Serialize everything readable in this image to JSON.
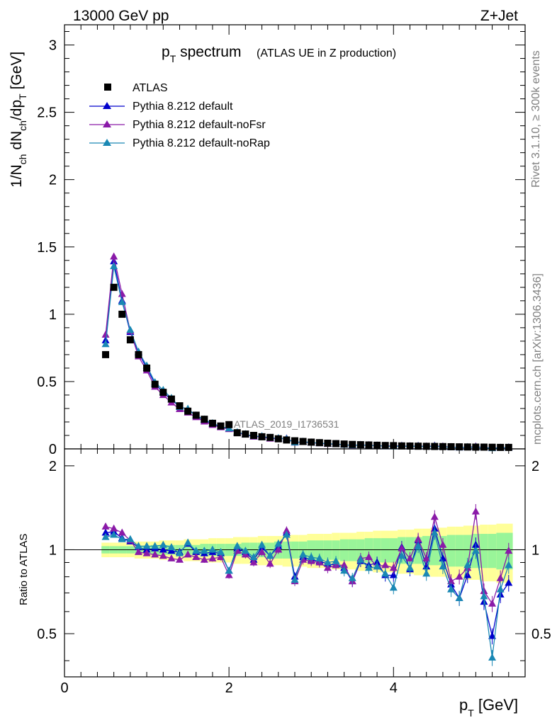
{
  "header": {
    "energy": "13000 GeV pp",
    "process": "Z+Jet"
  },
  "side_text": {
    "rivet": "Rivet 3.1.10, ≥ 300k events",
    "source": "mcplots.cern.ch [arXiv:1306.3436]"
  },
  "chart_data": {
    "type": "scatter",
    "title_main": "p",
    "title_sub": "T",
    "title_main2": " spectrum",
    "title_extra": "(ATLAS UE in Z production)",
    "analysis_label": "ATLAS_2019_I1736531",
    "ylabel_main": "1/N",
    "ylabel_parts": [
      "1/N",
      "ch",
      " dN",
      "ch",
      "/dp",
      "T",
      " [GeV]"
    ],
    "xlabel_main": "p",
    "xlabel_sub": "T",
    "xlabel_unit": " [GeV]",
    "ratio_ylabel": "Ratio to ATLAS",
    "xlim": [
      0,
      5.6
    ],
    "ylim_main": [
      0,
      3.15
    ],
    "ylim_ratio": [
      0.35,
      2.3
    ],
    "x_ticks": [
      "0",
      "2",
      "4"
    ],
    "y_ticks_main": [
      "0",
      "0.5",
      "1",
      "1.5",
      "2",
      "2.5",
      "3"
    ],
    "y_ticks_ratio_left": [
      "0.5",
      "1",
      "2"
    ],
    "y_ticks_ratio_right": [
      "0.5",
      "1",
      "2"
    ],
    "legend": [
      {
        "label": "ATLAS",
        "marker": "square",
        "color": "#000000"
      },
      {
        "label": "Pythia 8.212 default",
        "marker": "triangle",
        "color": "#0000cc"
      },
      {
        "label": "Pythia 8.212 default-noFsr",
        "marker": "triangle",
        "color": "#8a1aa8"
      },
      {
        "label": "Pythia 8.212 default-noRap",
        "marker": "triangle",
        "color": "#1a88b4"
      }
    ],
    "x": [
      0.5,
      0.6,
      0.7,
      0.8,
      0.9,
      1.0,
      1.1,
      1.2,
      1.3,
      1.4,
      1.5,
      1.6,
      1.7,
      1.8,
      1.9,
      2.0,
      2.1,
      2.2,
      2.3,
      2.4,
      2.5,
      2.6,
      2.7,
      2.8,
      2.9,
      3.0,
      3.1,
      3.2,
      3.3,
      3.4,
      3.5,
      3.6,
      3.7,
      3.8,
      3.9,
      4.0,
      4.1,
      4.2,
      4.3,
      4.4,
      4.5,
      4.6,
      4.7,
      4.8,
      4.9,
      5.0,
      5.1,
      5.2,
      5.3,
      5.4
    ],
    "atlas": [
      0.7,
      1.2,
      1.0,
      0.81,
      0.7,
      0.6,
      0.48,
      0.42,
      0.37,
      0.32,
      0.28,
      0.25,
      0.22,
      0.19,
      0.17,
      0.18,
      0.12,
      0.11,
      0.1,
      0.09,
      0.085,
      0.075,
      0.066,
      0.06,
      0.055,
      0.05,
      0.046,
      0.042,
      0.039,
      0.036,
      0.033,
      0.031,
      0.029,
      0.027,
      0.025,
      0.024,
      0.022,
      0.021,
      0.02,
      0.019,
      0.018,
      0.017,
      0.016,
      0.015,
      0.014,
      0.013,
      0.013,
      0.012,
      0.011,
      0.011
    ],
    "series": [
      {
        "name": "Pythia 8.212 default",
        "color": "#0000cc",
        "ratio": [
          1.15,
          1.16,
          1.1,
          1.07,
          1.02,
          1.0,
          1.01,
          1.0,
          0.99,
          0.98,
          1.05,
          0.98,
          0.97,
          0.98,
          0.97,
          0.84,
          1.01,
          0.98,
          0.92,
          1.02,
          0.95,
          1.03,
          1.15,
          0.8,
          0.94,
          0.92,
          0.91,
          0.89,
          0.88,
          0.86,
          0.77,
          0.91,
          0.88,
          0.9,
          0.81,
          0.81,
          1.02,
          0.85,
          1.08,
          0.87,
          1.19,
          0.93,
          0.75,
          0.67,
          0.81,
          1.04,
          0.65,
          0.49,
          0.69,
          0.76
        ]
      },
      {
        "name": "Pythia 8.212 default-noFsr",
        "color": "#8a1aa8",
        "ratio": [
          1.21,
          1.19,
          1.15,
          1.08,
          0.98,
          0.97,
          0.96,
          0.95,
          0.93,
          0.92,
          0.96,
          0.94,
          0.92,
          0.93,
          0.94,
          0.81,
          0.99,
          0.96,
          0.9,
          0.98,
          0.89,
          1.0,
          1.17,
          0.77,
          0.92,
          0.91,
          0.9,
          0.86,
          0.88,
          0.88,
          0.77,
          0.93,
          0.94,
          0.87,
          0.88,
          0.86,
          1.01,
          0.93,
          1.09,
          0.93,
          1.31,
          1.04,
          0.77,
          0.8,
          0.86,
          1.37,
          0.71,
          0.64,
          0.79,
          0.99
        ]
      },
      {
        "name": "Pythia 8.212 default-noRap",
        "color": "#1a88b4",
        "ratio": [
          1.11,
          1.13,
          1.09,
          1.09,
          1.03,
          1.03,
          1.03,
          1.04,
          1.02,
          0.97,
          1.06,
          0.99,
          0.99,
          1.0,
          0.98,
          0.84,
          1.03,
          0.99,
          0.94,
          1.04,
          0.95,
          1.05,
          1.13,
          0.78,
          0.96,
          0.94,
          0.93,
          0.9,
          0.91,
          0.84,
          0.79,
          0.92,
          0.86,
          0.87,
          0.82,
          0.73,
          0.95,
          0.86,
          1.03,
          0.82,
          1.15,
          0.87,
          0.72,
          0.67,
          0.88,
          0.99,
          0.68,
          0.41,
          0.72,
          0.88
        ]
      }
    ],
    "band_yellow_halfwidth": [
      0.06,
      0.06,
      0.06,
      0.06,
      0.07,
      0.07,
      0.07,
      0.08,
      0.08,
      0.08,
      0.09,
      0.09,
      0.09,
      0.1,
      0.1,
      0.1,
      0.11,
      0.11,
      0.11,
      0.12,
      0.12,
      0.12,
      0.13,
      0.13,
      0.13,
      0.14,
      0.14,
      0.14,
      0.15,
      0.15,
      0.15,
      0.16,
      0.16,
      0.17,
      0.17,
      0.17,
      0.18,
      0.18,
      0.19,
      0.19,
      0.2,
      0.2,
      0.21,
      0.21,
      0.22,
      0.22,
      0.23,
      0.23,
      0.24,
      0.24
    ],
    "band_green_halfwidth": [
      0.03,
      0.03,
      0.03,
      0.03,
      0.03,
      0.03,
      0.04,
      0.04,
      0.04,
      0.04,
      0.04,
      0.04,
      0.05,
      0.05,
      0.05,
      0.05,
      0.05,
      0.06,
      0.06,
      0.06,
      0.06,
      0.07,
      0.07,
      0.07,
      0.07,
      0.08,
      0.08,
      0.08,
      0.08,
      0.09,
      0.09,
      0.09,
      0.1,
      0.1,
      0.1,
      0.1,
      0.11,
      0.11,
      0.11,
      0.12,
      0.12,
      0.12,
      0.13,
      0.13,
      0.13,
      0.14,
      0.14,
      0.14,
      0.15,
      0.15
    ]
  }
}
